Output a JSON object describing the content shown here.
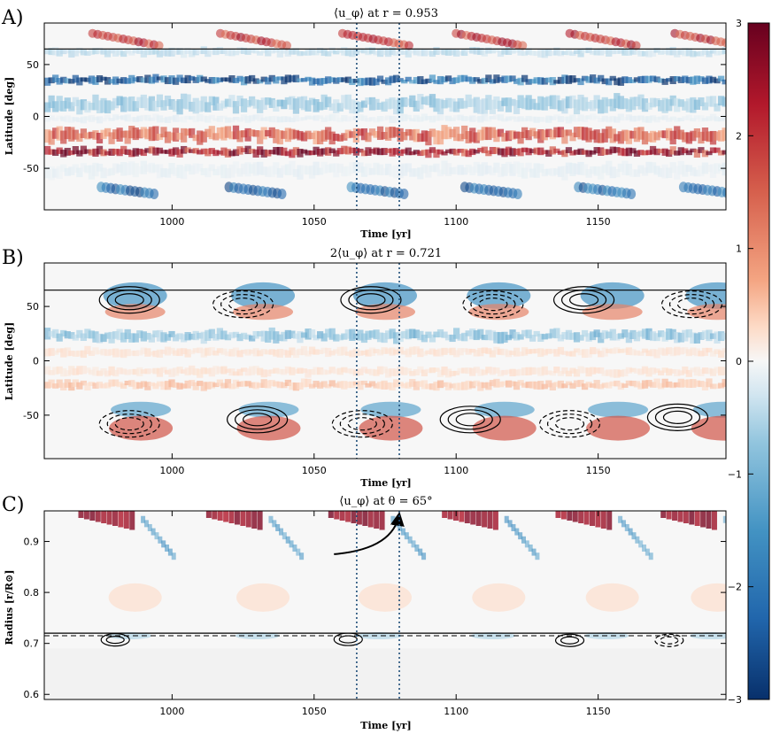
{
  "chart_data": [
    {
      "type": "heatmap",
      "panel_label": "A)",
      "title": "⟨u_φ⟩ at r = 0.953",
      "xlabel": "Time [yr]",
      "ylabel": "Latitude [deg]",
      "xlim": [
        955,
        1195
      ],
      "ylim": [
        -90,
        90
      ],
      "xticks": [
        1000,
        1050,
        1100,
        1150
      ],
      "xtick_labels": [
        "1000",
        "1050",
        "1100",
        "1150"
      ],
      "yticks": [
        50,
        0,
        -50
      ],
      "ytick_labels": [
        "50",
        "0",
        "-50"
      ],
      "hline_y": 65,
      "vlines_x": [
        1065,
        1080
      ],
      "cycle_start_times": [
        967,
        1012,
        1055,
        1095,
        1135,
        1172
      ],
      "bands": [
        {
          "lat": 62,
          "width": 6,
          "value": -0.8
        },
        {
          "lat": 35,
          "width": 6,
          "value": -2.9
        },
        {
          "lat": 12,
          "width": 11,
          "value": -1.2
        },
        {
          "lat": -2,
          "width": 5,
          "value": -0.3
        },
        {
          "lat": -18,
          "width": 10,
          "value": 2.0
        },
        {
          "lat": -34,
          "width": 6,
          "value": 2.9
        },
        {
          "lat": -52,
          "width": 10,
          "value": -0.3
        }
      ]
    },
    {
      "type": "heatmap",
      "panel_label": "B)",
      "title": "2⟨u_φ⟩ at r = 0.721",
      "xlabel": "Time [yr]",
      "ylabel": "Latitude [deg]",
      "xlim": [
        955,
        1195
      ],
      "ylim": [
        -90,
        90
      ],
      "xticks": [
        1000,
        1050,
        1100,
        1150
      ],
      "xtick_labels": [
        "1000",
        "1050",
        "1100",
        "1150"
      ],
      "yticks": [
        50,
        0,
        -50
      ],
      "ytick_labels": [
        "50",
        "0",
        "-50"
      ],
      "hline_y": 65,
      "vlines_x": [
        1065,
        1080
      ],
      "cycle_start_times": [
        967,
        1012,
        1055,
        1095,
        1135,
        1172
      ],
      "bands": [
        {
          "lat": 23,
          "width": 8,
          "value": -1.3
        },
        {
          "lat": 8,
          "width": 6,
          "value": 0.5
        },
        {
          "lat": -10,
          "width": 6,
          "value": 0.5
        },
        {
          "lat": -22,
          "width": 6,
          "value": 0.9
        }
      ],
      "contour_centers": [
        {
          "t": 985,
          "lat": 56,
          "solid": true
        },
        {
          "t": 1025,
          "lat": 52,
          "solid": false
        },
        {
          "t": 1070,
          "lat": 56,
          "solid": true
        },
        {
          "t": 1113,
          "lat": 52,
          "solid": false
        },
        {
          "t": 1145,
          "lat": 56,
          "solid": true
        },
        {
          "t": 1183,
          "lat": 52,
          "solid": false
        },
        {
          "t": 985,
          "lat": -58,
          "solid": false
        },
        {
          "t": 1030,
          "lat": -54,
          "solid": true
        },
        {
          "t": 1067,
          "lat": -58,
          "solid": false
        },
        {
          "t": 1105,
          "lat": -54,
          "solid": true
        },
        {
          "t": 1140,
          "lat": -58,
          "solid": false
        },
        {
          "t": 1178,
          "lat": -52,
          "solid": true
        }
      ]
    },
    {
      "type": "heatmap",
      "panel_label": "C)",
      "title": "⟨u_φ⟩ at θ = 65°",
      "xlabel": "Time [yr]",
      "ylabel": "Radius [r/R⊙]",
      "xlim": [
        955,
        1195
      ],
      "ylim": [
        0.59,
        0.96
      ],
      "xticks": [
        1000,
        1050,
        1100,
        1150
      ],
      "xtick_labels": [
        "1000",
        "1050",
        "1100",
        "1150"
      ],
      "yticks": [
        0.9,
        0.8,
        0.7,
        0.6
      ],
      "ytick_labels": [
        "0.9",
        "0.8",
        "0.7",
        "0.6"
      ],
      "hline_y": 0.72,
      "dashed_hline_y": 0.715,
      "vlines_x": [
        1065,
        1080
      ],
      "arrow_from": [
        1057,
        0.875
      ],
      "arrow_to": [
        1080,
        0.955
      ],
      "cycle_start_times": [
        967,
        1012,
        1055,
        1095,
        1135,
        1172
      ],
      "contour_centers": [
        {
          "t": 980,
          "r": 0.707,
          "solid": true
        },
        {
          "t": 1062,
          "r": 0.708,
          "solid": true
        },
        {
          "t": 1140,
          "r": 0.706,
          "solid": true
        },
        {
          "t": 1175,
          "r": 0.706,
          "solid": false
        }
      ]
    }
  ],
  "colorbar": {
    "min": -3,
    "max": 3,
    "ticks": [
      3,
      2,
      1,
      0,
      -1,
      -2,
      -3
    ],
    "tick_labels": [
      "3",
      "2",
      "1",
      "0",
      "−1",
      "−2",
      "−3"
    ],
    "colors": [
      "#08306b",
      "#2166ac",
      "#4393c3",
      "#92c5de",
      "#d1e5f0",
      "#f7f7f7",
      "#fddbc7",
      "#f4a582",
      "#d6604d",
      "#b2182b",
      "#67001f"
    ]
  }
}
